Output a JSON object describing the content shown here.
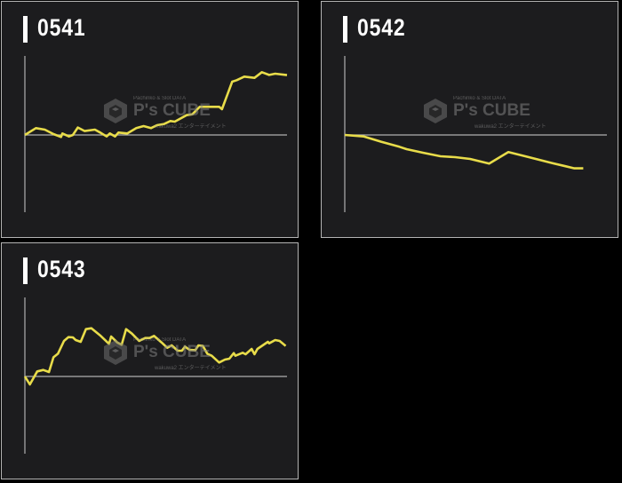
{
  "watermark": {
    "sub": "Pachinko & Slot DATA",
    "main": "P's CUBE",
    "tag": "wakuwa2 エンターテイメント"
  },
  "colors": {
    "line": "#e8dc4a",
    "axis": "#b0b0b0",
    "panel_bg": "#1c1c1e",
    "page_bg": "#000000"
  },
  "chart_data": [
    {
      "type": "line",
      "title": "0541",
      "xlim": [
        0,
        100
      ],
      "ylim": [
        -100,
        100
      ],
      "grid": false,
      "x": [
        0,
        4.2,
        7.6,
        10.9,
        13.8,
        14.3,
        16.8,
        18.3,
        20.2,
        22.8,
        26.7,
        29.0,
        31.2,
        32.4,
        34.4,
        35.7,
        39.1,
        42.5,
        45.3,
        48.1,
        50.4,
        53.2,
        55.5,
        57.2,
        61.7,
        63.9,
        66.7,
        74.1,
        75.2,
        79.1,
        80.8,
        83.7,
        87.6,
        90.4,
        93.2,
        95.5,
        100
      ],
      "y": [
        0,
        8.6,
        6.7,
        1.1,
        -2.6,
        1.9,
        -1.9,
        0,
        9.4,
        4.9,
        6.7,
        2.6,
        -1.9,
        1.9,
        -1.9,
        3.0,
        1.9,
        8.6,
        11.2,
        8.6,
        12.4,
        13.9,
        17.6,
        16.9,
        25.1,
        26.2,
        35.6,
        35.6,
        32.6,
        67.4,
        69.3,
        73.8,
        72.3,
        79.4,
        76.0,
        77.5,
        75.7
      ]
    },
    {
      "type": "line",
      "title": "0542",
      "xlim": [
        0,
        100
      ],
      "ylim": [
        -100,
        100
      ],
      "grid": false,
      "x": [
        0,
        7.3,
        14.0,
        20.8,
        23.6,
        29.8,
        36.5,
        42.1,
        47.8,
        55.1,
        62.4,
        70.2,
        79.2,
        87.6,
        91.0
      ],
      "y": [
        0,
        -1.9,
        -8.6,
        -14.9,
        -18.0,
        -22.5,
        -27.0,
        -28.1,
        -30.3,
        -36.3,
        -21.7,
        -28.1,
        -35.6,
        -42.3,
        -42.3
      ]
    },
    {
      "type": "line",
      "title": "0543",
      "xlim": [
        0,
        100
      ],
      "ylim": [
        -100,
        100
      ],
      "grid": false,
      "x": [
        0,
        1.9,
        4.7,
        7.0,
        9.2,
        10.9,
        12.6,
        14.9,
        16.6,
        18.3,
        19.4,
        21.3,
        23.3,
        25.4,
        28.9,
        32.1,
        32.9,
        35.2,
        36.9,
        38.6,
        40.8,
        43.6,
        45.9,
        47.6,
        49.3,
        52.1,
        54.3,
        56.0,
        58.3,
        59.9,
        61.1,
        62.8,
        65.0,
        66.2,
        67.9,
        69.6,
        71.3,
        74.1,
        76.3,
        78.0,
        79.7,
        80.3,
        83.1,
        84.2,
        86.5,
        87.6,
        88.7,
        92.7,
        93.2,
        95.5,
        97.2,
        99.5
      ],
      "y": [
        0,
        -10.1,
        6.4,
        8.2,
        5.6,
        24.3,
        28.8,
        44.9,
        49.8,
        49.4,
        46.1,
        43.8,
        59.9,
        61.0,
        51.3,
        41.2,
        50.6,
        43.1,
        40.1,
        59.9,
        54.3,
        44.9,
        48.7,
        48.7,
        51.3,
        43.1,
        36.3,
        39.3,
        32.6,
        32.6,
        37.8,
        33.7,
        33.3,
        39.3,
        38.6,
        28.8,
        26.2,
        17.6,
        21.3,
        22.5,
        29.6,
        26.2,
        30.0,
        28.1,
        34.8,
        28.1,
        34.8,
        43.8,
        41.9,
        46.1,
        44.9,
        38.6
      ]
    }
  ]
}
